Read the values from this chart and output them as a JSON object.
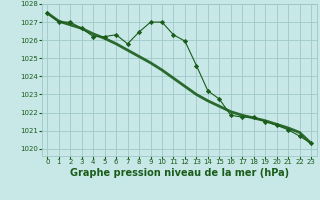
{
  "title": "Graphe pression niveau de la mer (hPa)",
  "bg_color": "#c8e8e8",
  "grid_color": "#a0c8c8",
  "line_color": "#1a5c1a",
  "marker_color": "#1a5c1a",
  "x_values": [
    0,
    1,
    2,
    3,
    4,
    5,
    6,
    7,
    8,
    9,
    10,
    11,
    12,
    13,
    14,
    15,
    16,
    17,
    18,
    19,
    20,
    21,
    22,
    23
  ],
  "y_main": [
    1027.5,
    1027.0,
    1027.0,
    1026.65,
    1026.2,
    1026.2,
    1026.3,
    1025.8,
    1026.45,
    1027.0,
    1027.0,
    1026.3,
    1025.95,
    1024.6,
    1023.2,
    1022.75,
    1021.85,
    1021.75,
    1021.75,
    1021.5,
    1021.3,
    1021.05,
    1020.7,
    1020.3
  ],
  "y_smooth": [
    1027.5,
    1027.05,
    1026.85,
    1026.65,
    1026.35,
    1026.1,
    1025.8,
    1025.45,
    1025.1,
    1024.75,
    1024.35,
    1023.9,
    1023.45,
    1023.0,
    1022.65,
    1022.35,
    1022.05,
    1021.85,
    1021.7,
    1021.55,
    1021.35,
    1021.15,
    1020.9,
    1020.3
  ],
  "ylim_min": 1019.6,
  "ylim_max": 1028.0,
  "yticks": [
    1020,
    1021,
    1022,
    1023,
    1024,
    1025,
    1026,
    1027,
    1028
  ],
  "xticks": [
    0,
    1,
    2,
    3,
    4,
    5,
    6,
    7,
    8,
    9,
    10,
    11,
    12,
    13,
    14,
    15,
    16,
    17,
    18,
    19,
    20,
    21,
    22,
    23
  ],
  "title_fontsize": 7.0,
  "tick_fontsize": 5.0,
  "label_color": "#1a5c1a"
}
